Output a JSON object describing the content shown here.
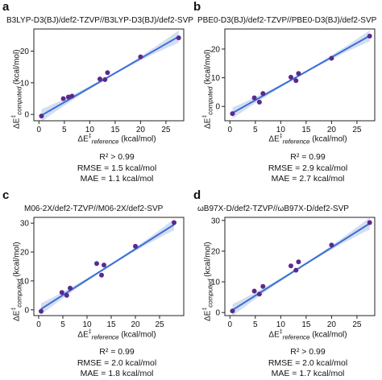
{
  "chart_data": [
    {
      "type": "scatter",
      "panel_label": "a",
      "title": "B3LYP-D3(BJ)/def2-TZVP//B3LYP-D3(BJ)/def2-SVP",
      "xlabel": "ΔE‡reference (kcal/mol)",
      "xlabel_main": "ΔE",
      "xlabel_sup": "‡",
      "xlabel_sub": "reference",
      "xlabel_unit": " (kcal/mol)",
      "ylabel": "ΔE‡computed (kcal/mol)",
      "ylabel_main": "ΔE",
      "ylabel_sup": "‡",
      "ylabel_sub": "computed",
      "ylabel_unit": " (kcal/mol)",
      "xlim": [
        -1,
        28.5
      ],
      "ylim": [
        -2,
        27
      ],
      "xticks": [
        0,
        5,
        10,
        15,
        20,
        25
      ],
      "yticks": [
        0,
        10,
        20
      ],
      "x": [
        0.5,
        4.8,
        5.8,
        6.5,
        12.0,
        13.0,
        13.5,
        20.0,
        27.5
      ],
      "y": [
        -0.5,
        5.0,
        5.5,
        5.8,
        11.2,
        11.0,
        13.2,
        18.2,
        24.2
      ],
      "fit": {
        "x": [
          0.5,
          27.5
        ],
        "y": [
          -0.3,
          24.6
        ]
      },
      "stats": [
        "R² > 0.99",
        "RMSE = 1.5 kcal/mol",
        "MAE = 1.1 kcal/mol"
      ],
      "point_color": "#5b2a8c",
      "line_color": "#3a6fd8",
      "band_color": "#c9d6ee"
    },
    {
      "type": "scatter",
      "panel_label": "b",
      "title": "PBE0-D3(BJ)/def2-TZVP//PBE0-D3(BJ)/def2-SVP",
      "xlabel": "ΔE‡reference (kcal/mol)",
      "xlabel_main": "ΔE",
      "xlabel_sup": "‡",
      "xlabel_sub": "reference",
      "xlabel_unit": " (kcal/mol)",
      "ylabel": "ΔE‡computed (kcal/mol)",
      "ylabel_main": "ΔE",
      "ylabel_sup": "‡",
      "ylabel_sub": "computed",
      "ylabel_unit": " (kcal/mol)",
      "xlim": [
        -1,
        28.5
      ],
      "ylim": [
        -5,
        27
      ],
      "xticks": [
        0,
        5,
        10,
        15,
        20,
        25
      ],
      "yticks": [
        0,
        10,
        20
      ],
      "x": [
        0.5,
        4.8,
        5.8,
        6.5,
        12.0,
        13.0,
        13.5,
        20.0,
        27.5
      ],
      "y": [
        -2.5,
        3.0,
        1.5,
        4.5,
        10.2,
        9.0,
        11.5,
        16.8,
        24.5
      ],
      "fit": {
        "x": [
          0.5,
          27.5
        ],
        "y": [
          -2.3,
          24.6
        ]
      },
      "stats": [
        "R² = 0.99",
        "RMSE = 2.9 kcal/mol",
        "MAE = 2.7 kcal/mol"
      ],
      "point_color": "#5b2a8c",
      "line_color": "#3a6fd8",
      "band_color": "#c9d6ee"
    },
    {
      "type": "scatter",
      "panel_label": "c",
      "title": "M06-2X/def2-TZVP//M06-2X/def2-SVP",
      "xlabel": "ΔE‡reference (kcal/mol)",
      "xlabel_main": "ΔE",
      "xlabel_sup": "‡",
      "xlabel_sub": "reference",
      "xlabel_unit": " (kcal/mol)",
      "ylabel": "ΔE‡computed (kcal/mol)",
      "ylabel_main": "ΔE",
      "ylabel_sup": "‡",
      "ylabel_sub": "computed",
      "ylabel_unit": " (kcal/mol)",
      "xlim": [
        -1,
        30
      ],
      "ylim": [
        -2,
        32
      ],
      "xticks": [
        0,
        5,
        10,
        15,
        20,
        25
      ],
      "yticks": [
        0,
        10,
        20,
        30
      ],
      "x": [
        0.5,
        4.8,
        5.8,
        6.5,
        12.0,
        13.0,
        13.5,
        20.0,
        28.0
      ],
      "y": [
        -0.5,
        6.0,
        5.0,
        7.5,
        16.0,
        12.0,
        15.5,
        22.0,
        30.2
      ],
      "fit": {
        "x": [
          0.5,
          28.0
        ],
        "y": [
          0.3,
          29.5
        ]
      },
      "stats": [
        "R² = 0.99",
        "RMSE = 2.0 kcal/mol",
        "MAE = 1.8 kcal/mol"
      ],
      "point_color": "#5b2a8c",
      "line_color": "#3a6fd8",
      "band_color": "#c9d6ee"
    },
    {
      "type": "scatter",
      "panel_label": "d",
      "title": "ωB97X-D/def2-TZVP//ωB97X-D/def2-SVP",
      "xlabel": "ΔE‡reference (kcal/mol)",
      "xlabel_main": "ΔE",
      "xlabel_sup": "‡",
      "xlabel_sub": "reference",
      "xlabel_unit": " (kcal/mol)",
      "ylabel": "ΔE‡computed (kcal/mol)",
      "ylabel_main": "ΔE",
      "ylabel_sup": "‡",
      "ylabel_sub": "computed",
      "ylabel_unit": " (kcal/mol)",
      "xlim": [
        -1,
        28.5
      ],
      "ylim": [
        -1,
        31
      ],
      "xticks": [
        0,
        5,
        10,
        15,
        20,
        25
      ],
      "yticks": [
        0,
        10,
        20,
        30
      ],
      "x": [
        0.5,
        4.8,
        5.8,
        6.5,
        12.0,
        13.0,
        13.5,
        20.0,
        27.5
      ],
      "y": [
        0.5,
        7.0,
        6.0,
        8.5,
        15.2,
        13.8,
        16.5,
        22.0,
        29.3
      ],
      "fit": {
        "x": [
          0.5,
          27.5
        ],
        "y": [
          0.8,
          29.0
        ]
      },
      "stats": [
        "R² > 0.99",
        "RMSE = 2.0 kcal/mol",
        "MAE = 1.7 kcal/mol"
      ],
      "point_color": "#5b2a8c",
      "line_color": "#3a6fd8",
      "band_color": "#c9d6ee"
    }
  ]
}
